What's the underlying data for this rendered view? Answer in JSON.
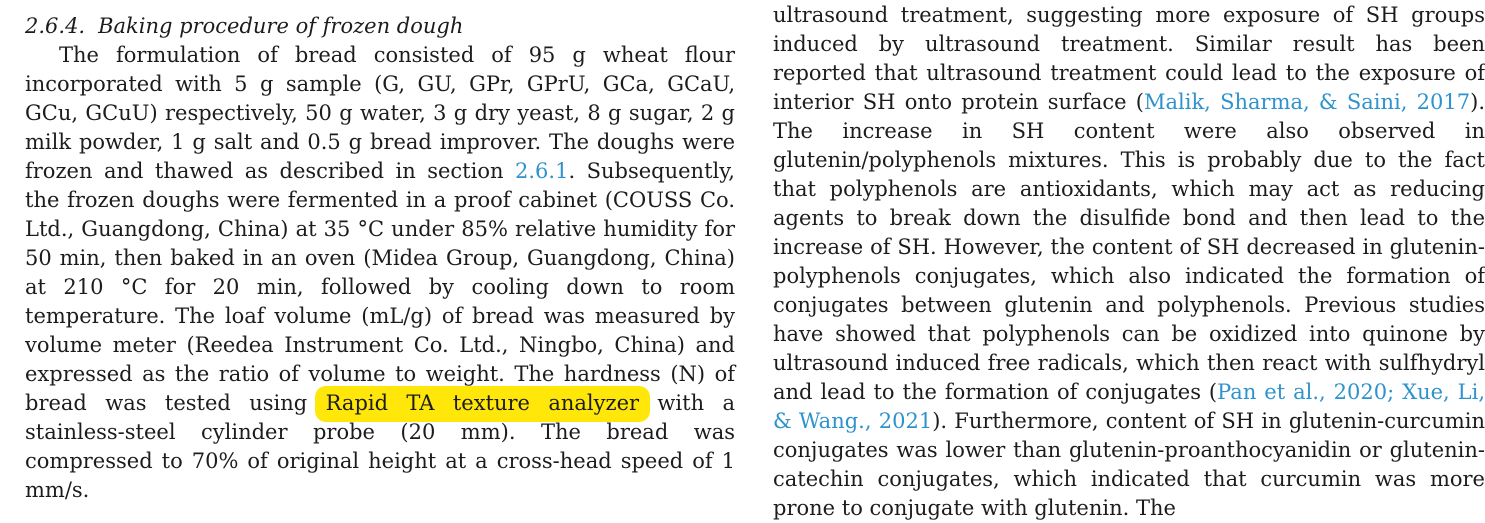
{
  "page": {
    "kind": "journal-article-two-column-text",
    "colors": {
      "text": "#1c1c1c",
      "link": "#2e93cd",
      "highlight": "#ffe70a",
      "background": "#ffffff"
    }
  },
  "left_column": {
    "heading": {
      "number": "2.6.4.",
      "title": "Baking procedure of frozen dough"
    },
    "paragraph": {
      "segments": [
        {
          "type": "text",
          "text": "The formulation of bread consisted of 95 g wheat flour incorporated with 5 g sample (G, GU, GPr, GPrU, GCa, GCaU, GCu, GCuU) respectively, 50 g water, 3 g dry yeast, 8 g sugar, 2 g milk powder, 1 g salt and 0.5 g bread improver. The doughs were frozen and thawed as described in section "
        },
        {
          "type": "link",
          "text": "2.6.1"
        },
        {
          "type": "text",
          "text": ". Subsequently, the frozen doughs were fermented in a proof cabinet (COUSS Co. Ltd., Guangdong, China) at 35 °C under 85% relative humidity for 50 min, then baked in an oven (Midea Group, Guangdong, China) at 210 °C for 20 min, followed by cooling down to room temperature. The loaf volume (mL/g) of bread was measured by volume meter (Reedea Instrument Co. Ltd., Ningbo, China) and expressed as the ratio of volume to weight. The hardness (N) of bread was tested using "
        },
        {
          "type": "highlight",
          "text": "Rapid TA texture analyzer"
        },
        {
          "type": "text",
          "text": " with a stainless-steel cylinder probe (20 mm). The bread was compressed to 70% of original height at a cross-head speed of 1 mm/s."
        }
      ]
    }
  },
  "right_column": {
    "paragraph": {
      "segments": [
        {
          "type": "text",
          "text": "ultrasound treatment, suggesting more exposure of SH groups induced by ultrasound treatment. Similar result has been reported that ultrasound treatment could lead to the exposure of interior SH onto protein surface ("
        },
        {
          "type": "link",
          "text": "Malik, Sharma, & Saini, 2017"
        },
        {
          "type": "text",
          "text": "). The increase in SH content were also observed in glutenin/polyphenols mixtures. This is probably due to the fact that polyphenols are antioxidants, which may act as reducing agents to break down the disulfide bond and then lead to the increase of SH. However, the content of SH decreased in glutenin-polyphenols conjugates, which also indicated the formation of conjugates between glutenin and polyphenols. Previous studies have showed that polyphenols can be oxidized into quinone by ultrasound induced free radicals, which then react with sulfhydryl and lead to the formation of conjugates ("
        },
        {
          "type": "link",
          "text": "Pan et al., 2020"
        },
        {
          "type": "link_separator",
          "text": "; "
        },
        {
          "type": "link",
          "text": "Xue, Li, & Wang., 2021"
        },
        {
          "type": "text",
          "text": "). Furthermore, content of SH in glutenin-curcumin conjugates was lower than glutenin-proanthocyanidin or glutenin-catechin conjugates, which indicated that curcumin was more prone to conjugate with glutenin. The"
        }
      ]
    }
  }
}
